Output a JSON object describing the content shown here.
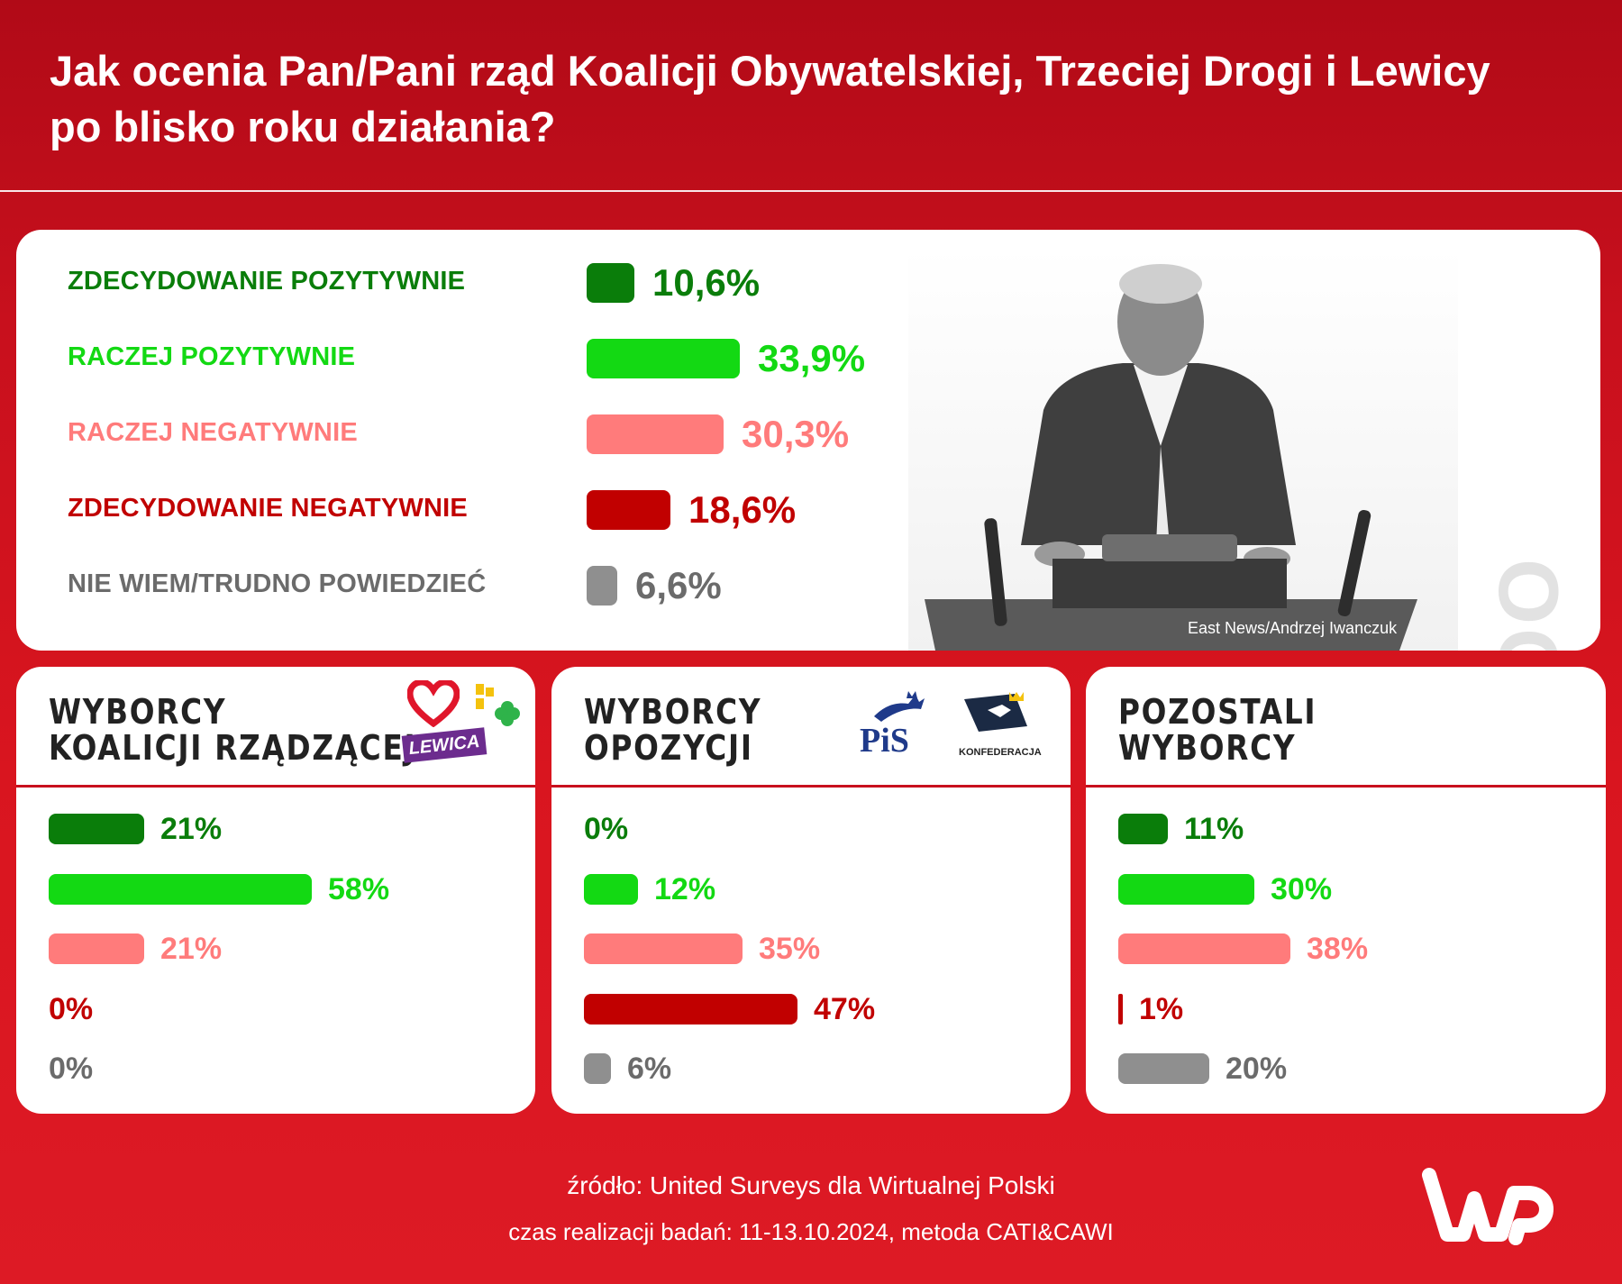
{
  "header": {
    "title_line1": "Jak ocenia Pan/Pani rząd Koalicji Obywatelskiej, Trzeciej Drogi i Lewicy",
    "title_line2": "po blisko roku działania?"
  },
  "colors": {
    "strong_positive": "#0a7d0a",
    "positive": "#13d913",
    "negative": "#ff7b7b",
    "strong_negative": "#c10000",
    "dont_know": "#8f8f8f",
    "dont_know_text": "#6b6b6b",
    "background_red": "#d9151f"
  },
  "overall": {
    "side_label": "OGÓŁEM",
    "photo_credit": "East News/Andrzej Iwanczuk"
  },
  "logos": {
    "lewica": "LEWICA",
    "pis": "PiS",
    "konfederacja": "KONFEDERACJA"
  },
  "chart_data": [
    {
      "type": "bar",
      "title": "OGÓŁEM",
      "unit": "%",
      "categories": [
        "ZDECYDOWANIE POZYTYWNIE",
        "RACZEJ POZYTYWNIE",
        "RACZEJ NEGATYWNIE",
        "ZDECYDOWANIE NEGATYWNIE",
        "NIE WIEM/TRUDNO POWIEDZIEĆ"
      ],
      "values": [
        10.6,
        33.9,
        30.3,
        18.6,
        6.6
      ],
      "value_labels": [
        "10,6%",
        "33,9%",
        "30,3%",
        "18,6%",
        "6,6%"
      ]
    },
    {
      "type": "bar",
      "title_lines": [
        "WYBORCY",
        "KOALICJI RZĄDZĄCEJ"
      ],
      "unit": "%",
      "categories": [
        "ZDECYDOWANIE POZYTYWNIE",
        "RACZEJ POZYTYWNIE",
        "RACZEJ NEGATYWNIE",
        "ZDECYDOWANIE NEGATYWNIE",
        "NIE WIEM/TRUDNO POWIEDZIEĆ"
      ],
      "values": [
        21,
        58,
        21,
        0,
        0
      ],
      "value_labels": [
        "21%",
        "58%",
        "21%",
        "0%",
        "0%"
      ]
    },
    {
      "type": "bar",
      "title_lines": [
        "WYBORCY",
        "OPOZYCJI"
      ],
      "unit": "%",
      "categories": [
        "ZDECYDOWANIE POZYTYWNIE",
        "RACZEJ POZYTYWNIE",
        "RACZEJ NEGATYWNIE",
        "ZDECYDOWANIE NEGATYWNIE",
        "NIE WIEM/TRUDNO POWIEDZIEĆ"
      ],
      "values": [
        0,
        12,
        35,
        47,
        6
      ],
      "value_labels": [
        "0%",
        "12%",
        "35%",
        "47%",
        "6%"
      ]
    },
    {
      "type": "bar",
      "title_lines": [
        "POZOSTALI",
        "WYBORCY"
      ],
      "unit": "%",
      "categories": [
        "ZDECYDOWANIE POZYTYWNIE",
        "RACZEJ POZYTYWNIE",
        "RACZEJ NEGATYWNIE",
        "ZDECYDOWANIE NEGATYWNIE",
        "NIE WIEM/TRUDNO POWIEDZIEĆ"
      ],
      "values": [
        11,
        30,
        38,
        1,
        20
      ],
      "value_labels": [
        "11%",
        "30%",
        "38%",
        "1%",
        "20%"
      ]
    }
  ],
  "footer": {
    "source": "źródło: United Surveys dla Wirtualnej Polski",
    "time": "czas realizacji badań: 11-13.10.2024, metoda CATI&CAWI"
  }
}
